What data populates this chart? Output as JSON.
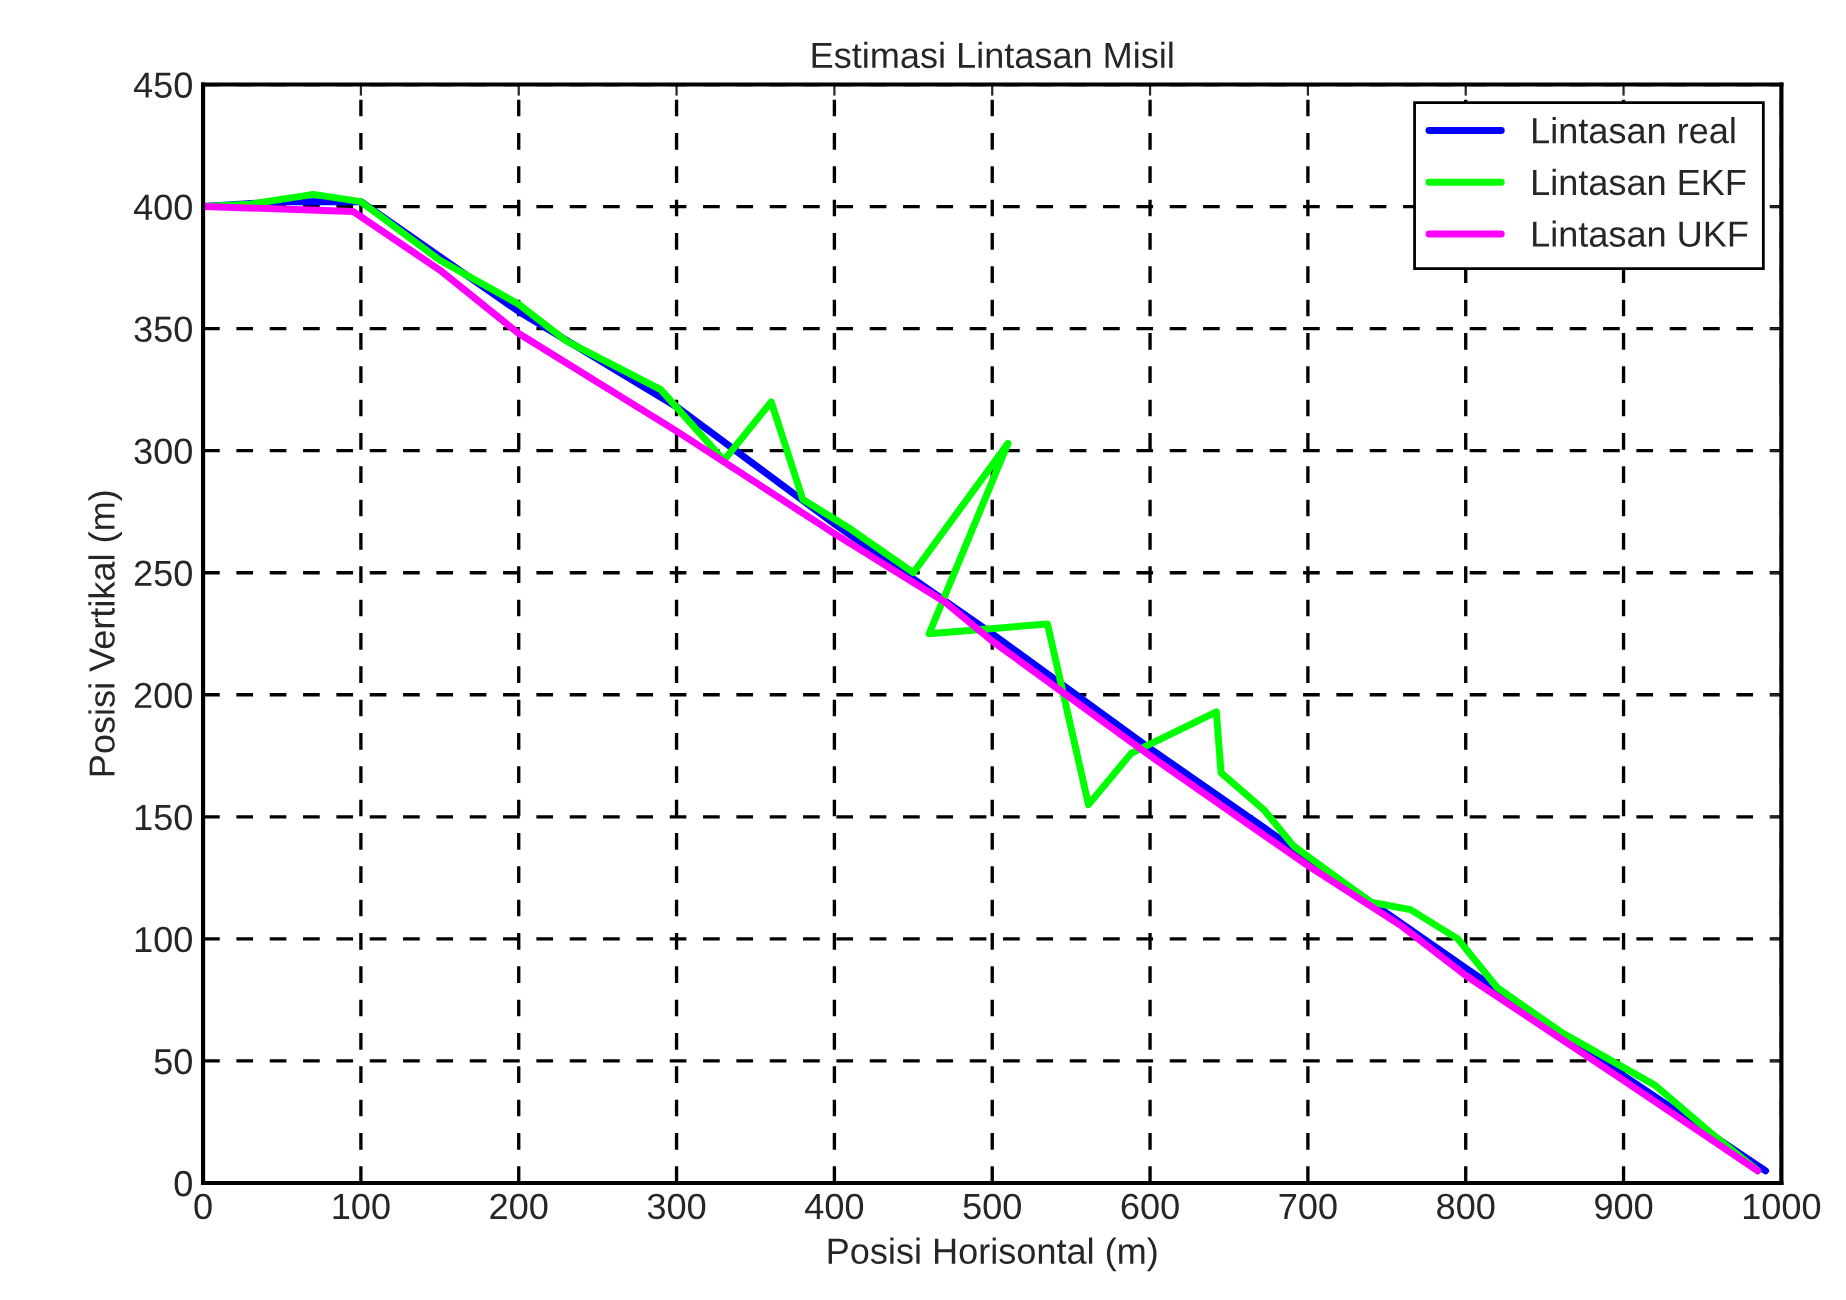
{
  "chart_data": {
    "type": "line",
    "title": "Estimasi Lintasan Misil",
    "xlabel": "Posisi Horisontal (m)",
    "ylabel": "Posisi Vertikal (m)",
    "xlim": [
      0,
      1000
    ],
    "ylim": [
      0,
      450
    ],
    "xticks": [
      0,
      100,
      200,
      300,
      400,
      500,
      600,
      700,
      800,
      900,
      1000
    ],
    "yticks": [
      0,
      50,
      100,
      150,
      200,
      250,
      300,
      350,
      400,
      450
    ],
    "grid": true,
    "legend": "top right",
    "line_style": "solid",
    "marker": "none",
    "series": [
      {
        "name": "Lintasan real",
        "color": "#0000ff",
        "x": [
          0,
          50,
          100,
          200,
          300,
          400,
          500,
          600,
          700,
          800,
          900,
          990
        ],
        "values": [
          400,
          402,
          402,
          357,
          318,
          270,
          225,
          178,
          133,
          88,
          44,
          5
        ]
      },
      {
        "name": "Lintasan EKF",
        "color": "#00ff00",
        "x": [
          0,
          30,
          70,
          100,
          150,
          200,
          230,
          290,
          330,
          360,
          380,
          410,
          450,
          510,
          460,
          535,
          561,
          588,
          642,
          645,
          672,
          691,
          740,
          765,
          795,
          820,
          860,
          920,
          960,
          985
        ],
        "values": [
          400,
          401,
          405,
          402,
          378,
          360,
          345,
          325,
          296,
          320,
          280,
          268,
          250,
          303,
          225,
          229,
          155,
          176,
          193,
          168,
          153,
          138,
          115,
          112,
          100,
          80,
          62,
          40,
          18,
          5
        ]
      },
      {
        "name": "Lintasan UKF",
        "color": "#ff00ff",
        "x": [
          0,
          50,
          95,
          150,
          200,
          300,
          400,
          470,
          500,
          600,
          700,
          760,
          800,
          900,
          985
        ],
        "values": [
          400,
          399,
          398,
          374,
          348,
          308,
          266,
          238,
          222,
          175,
          130,
          105,
          85,
          42,
          5
        ]
      }
    ]
  }
}
